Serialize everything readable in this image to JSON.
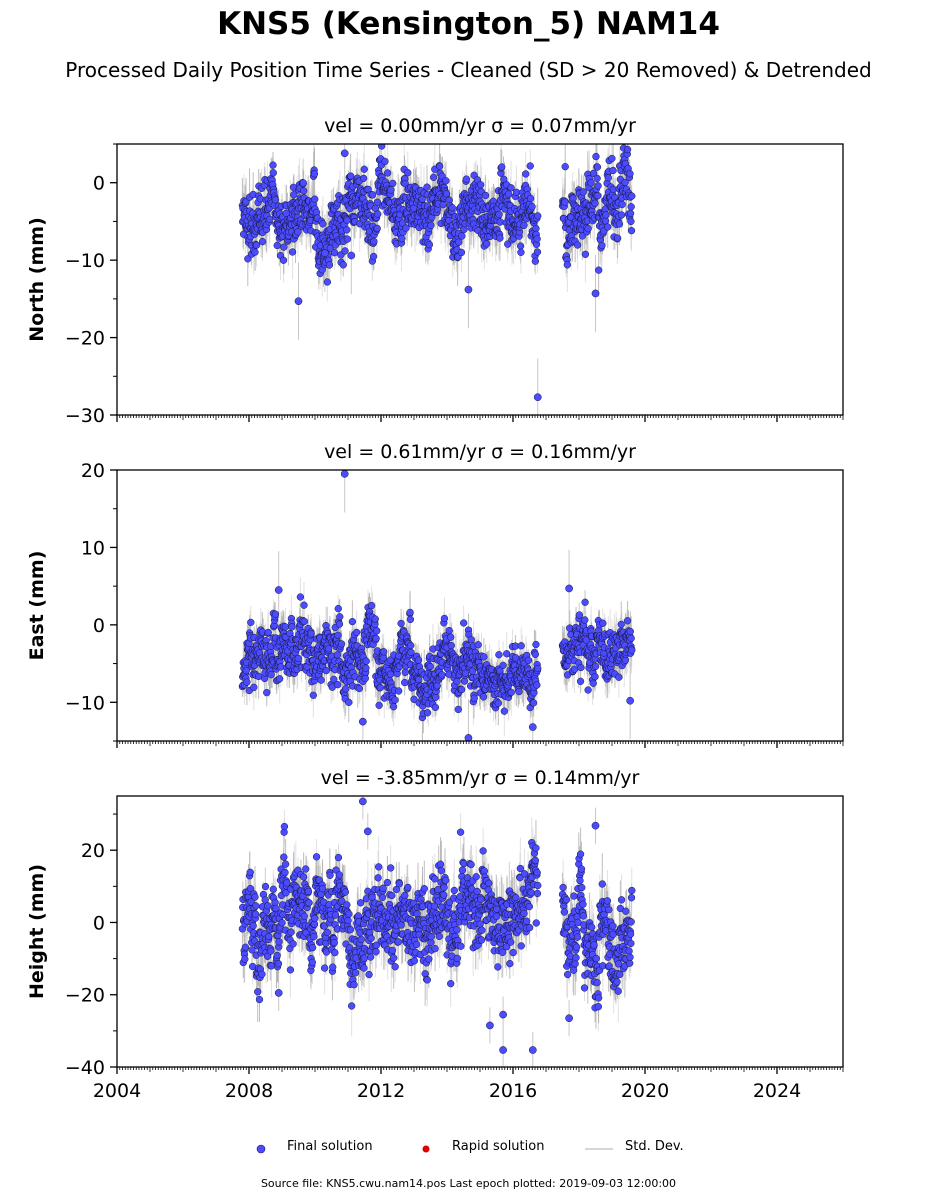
{
  "title": "KNS5 (Kensington_5) NAM14",
  "subtitle": "Processed Daily Position Time Series - Cleaned (SD > 20 Removed) & Detrended",
  "legend": {
    "final_label": "Final solution",
    "rapid_label": "Rapid solution",
    "std_label": "Std. Dev.",
    "final_color": "#4b4bff",
    "rapid_color": "#e00000",
    "std_color": "#c8c8c8"
  },
  "footer": "Source file: KNS5.cwu.nam14.pos  Last epoch plotted: 2019-09-03 12:00:00",
  "chart_data": [
    {
      "type": "scatter",
      "component": "north",
      "title": "vel = 0.00mm/yr   σ = 0.07mm/yr",
      "ylabel": "North (mm)",
      "xlim": [
        2004,
        2026
      ],
      "ylim": [
        -30,
        5
      ],
      "yticks": [
        0,
        -10,
        -20,
        -30
      ],
      "ytick_labels": [
        "0",
        "−10",
        "−20",
        "−30"
      ],
      "segments": [
        {
          "start": 2007.8,
          "end": 2016.75,
          "mean": -4,
          "spread": 2.3,
          "err": 2.5
        },
        {
          "start": 2017.5,
          "end": 2019.6,
          "mean": -3.5,
          "spread": 2.6,
          "err": 2.5
        }
      ],
      "outliers": [
        [
          2010.9,
          3.8
        ],
        [
          2009.5,
          -15.3
        ],
        [
          2014.65,
          -13.8
        ],
        [
          2016.75,
          -27.7
        ],
        [
          2018.5,
          -14.3
        ],
        [
          2010.3,
          -9.1
        ],
        [
          2011.1,
          -9.4
        ]
      ]
    },
    {
      "type": "scatter",
      "component": "east",
      "title": "vel = 0.61mm/yr   σ = 0.16mm/yr",
      "ylabel": "East (mm)",
      "xlim": [
        2004,
        2026
      ],
      "ylim": [
        -15,
        20
      ],
      "yticks": [
        20,
        10,
        0,
        -10
      ],
      "ytick_labels": [
        "20",
        "10",
        "0",
        "−10"
      ],
      "segments": [
        {
          "start": 2007.8,
          "end": 2012.9,
          "mean": -4,
          "spread": 2.3,
          "err": 2.2
        },
        {
          "start": 2012.9,
          "end": 2016.75,
          "mean": -6.8,
          "spread": 2.0,
          "err": 2.2
        },
        {
          "start": 2017.5,
          "end": 2019.6,
          "mean": -3.2,
          "spread": 1.8,
          "err": 2.2
        }
      ],
      "outliers": [
        [
          2010.9,
          19.5
        ],
        [
          2008.9,
          4.5
        ],
        [
          2017.7,
          4.7
        ],
        [
          2014.65,
          -14.6
        ],
        [
          2011.45,
          -12.5
        ],
        [
          2016.6,
          -13.2
        ],
        [
          2019.55,
          -9.8
        ]
      ]
    },
    {
      "type": "scatter",
      "component": "height",
      "title": "vel = -3.85mm/yr   σ = 0.14mm/yr",
      "ylabel": "Height (mm)",
      "xlim": [
        2004,
        2026
      ],
      "ylim": [
        -40,
        35
      ],
      "yticks": [
        20,
        0,
        -20,
        -40
      ],
      "ytick_labels": [
        "20",
        "0",
        "−20",
        "−40"
      ],
      "segments": [
        {
          "start": 2007.8,
          "end": 2016.75,
          "mean": 1,
          "spread": 6.5,
          "err": 6
        },
        {
          "start": 2017.5,
          "end": 2019.6,
          "mean": 1,
          "spread": 6.5,
          "err": 6
        }
      ],
      "outliers": [
        [
          2011.45,
          33.5
        ],
        [
          2015.3,
          -28.5
        ],
        [
          2015.7,
          -35.3
        ],
        [
          2016.6,
          -35.3
        ],
        [
          2015.7,
          -25.5
        ],
        [
          2017.7,
          -26.5
        ],
        [
          2018.5,
          26.8
        ],
        [
          2008.9,
          -19.5
        ],
        [
          2011.6,
          25.2
        ]
      ]
    }
  ],
  "x_axis": {
    "ticks": [
      2004,
      2008,
      2012,
      2016,
      2020,
      2024
    ],
    "tick_labels": [
      "2004",
      "2008",
      "2012",
      "2016",
      "2020",
      "2024"
    ]
  }
}
